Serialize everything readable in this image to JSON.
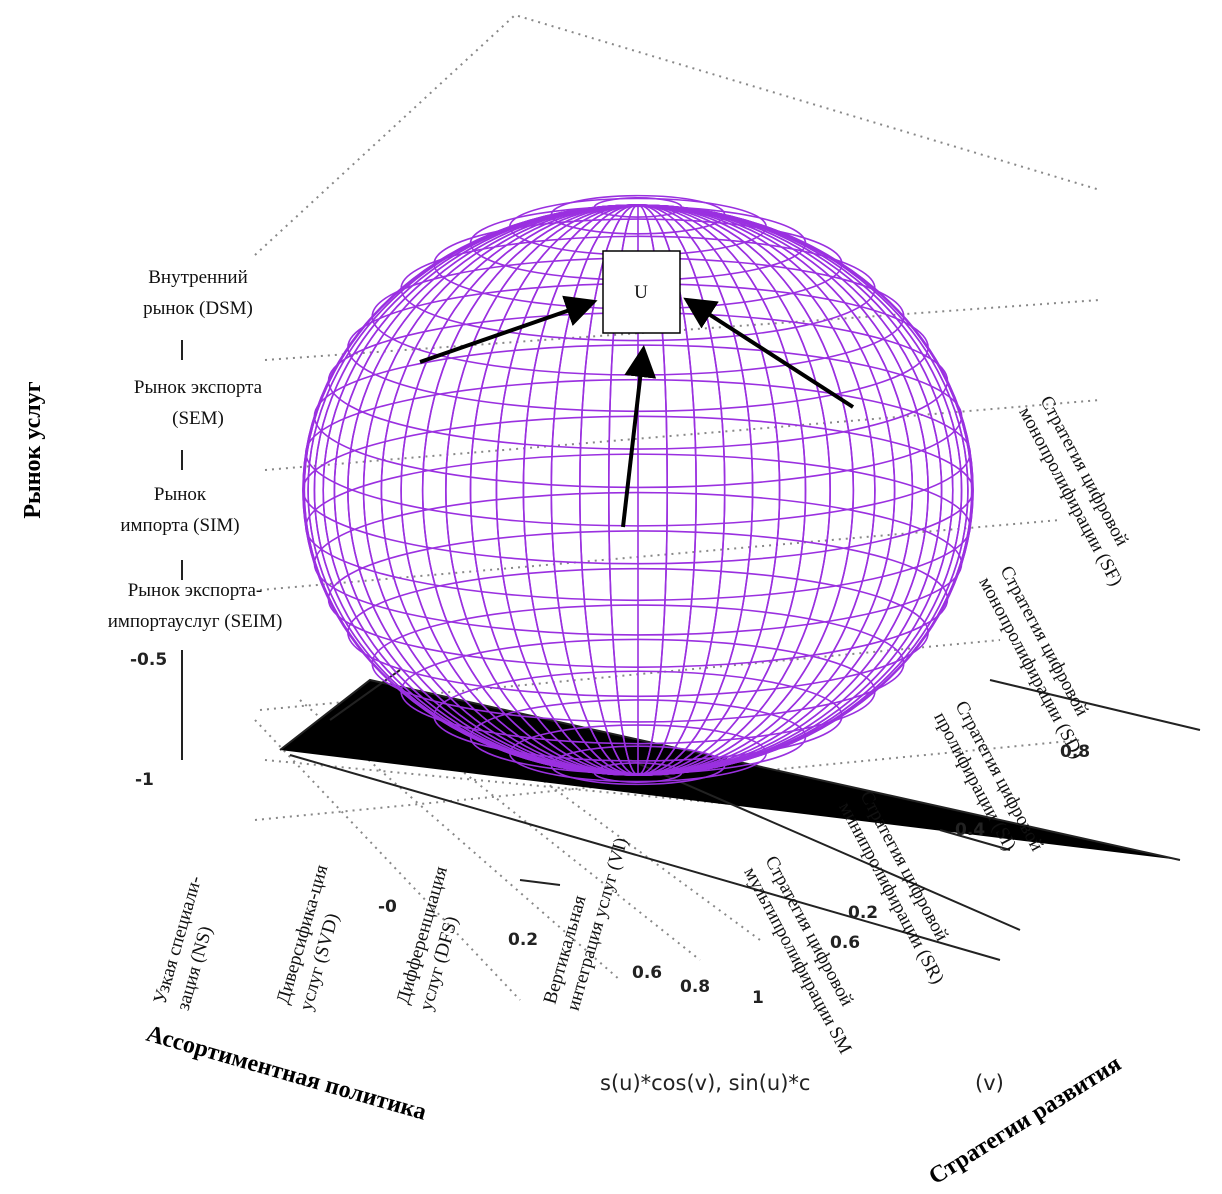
{
  "axes": {
    "vertical": "Рынок услуг",
    "left": "Ассортиментная политика",
    "right": "Стратегии развития"
  },
  "center_label": "U",
  "vertical_labels": [
    {
      "lines": [
        "Внутренний",
        "рынок (DSM)"
      ]
    },
    {
      "lines": [
        "Рынок экспорта",
        "(SEM)"
      ]
    },
    {
      "lines": [
        "Рынок",
        "импорта (SIM)"
      ]
    },
    {
      "lines": [
        "Рынок экспорта-",
        "импортауслуг (SEIM)"
      ]
    }
  ],
  "left_labels": [
    {
      "lines": [
        "Узкая специали-",
        "зация (NS)"
      ]
    },
    {
      "lines": [
        "Диверсифика-ция",
        "услуг (SVD)"
      ]
    },
    {
      "lines": [
        "Дифференциация",
        "услуг (DFS)"
      ]
    },
    {
      "lines": [
        "Вертикальная",
        "интеграция услуг (VI)"
      ]
    }
  ],
  "right_labels": [
    {
      "lines": [
        "Стратегия цифровой",
        "монопролифирации (SF)"
      ]
    },
    {
      "lines": [
        "Стратегия цифровой",
        "монопролифирации (SD)"
      ]
    },
    {
      "lines": [
        "Стратегия цифровой",
        "пролифирации (SI)"
      ]
    },
    {
      "lines": [
        "Стратегия цифровой",
        "минипролифирации (SR)"
      ]
    },
    {
      "lines": [
        "Стратегия цифровой",
        "мультипролифирации SM"
      ]
    }
  ],
  "tick_labels": [
    "-0.5",
    "-1",
    "0.8",
    "0.2",
    "0.6",
    "0.8",
    "1",
    "0.2",
    "-0",
    "0.6",
    "0.4"
  ],
  "plot_label": [
    "s(u)*cos(v), sin(u)*c",
    "(v)"
  ]
}
